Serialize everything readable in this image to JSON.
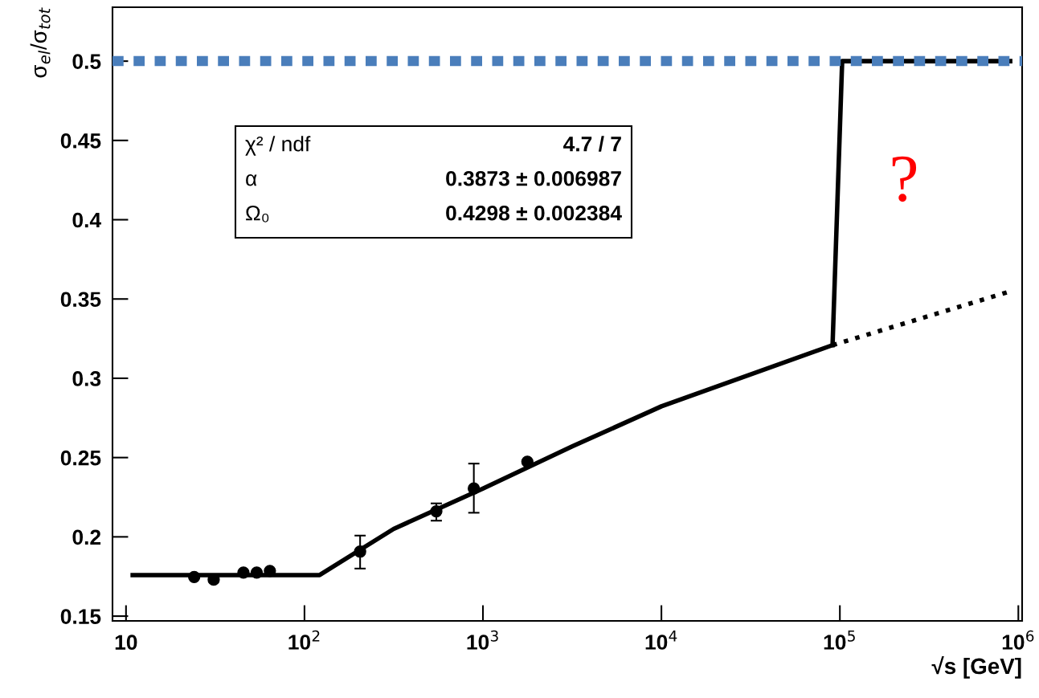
{
  "chart_data": {
    "type": "scatter",
    "xlabel": "√s [GeV]",
    "ylabel": "σ$_{el}$/σ$_{tot}$",
    "log": "x",
    "grid": false,
    "legend": false,
    "xlim": [
      8.4,
      1050000
    ],
    "ylim": [
      0.147,
      0.534
    ],
    "xticks": [
      10,
      {
        "value": 100,
        "label": "10$^{2}$"
      },
      {
        "value": 1000,
        "label": "10$^{3}$"
      },
      {
        "value": 10000,
        "label": "10$^{4}$"
      },
      {
        "value": 100000,
        "label": "10$^{5}$"
      },
      {
        "value": 1000000,
        "label": "10$^{6}$"
      }
    ],
    "yticks": [
      0.15,
      0.2,
      0.25,
      0.3,
      0.35,
      0.4,
      0.45,
      0.5
    ],
    "series": [
      {
        "color": "#000000",
        "marker": "circle",
        "x": [
          24.1,
          31,
          45.5,
          54,
          64,
          205,
          548,
          889,
          1774
        ],
        "values": [
          0.1747,
          0.173,
          0.1775,
          0.1775,
          0.1785,
          0.1907,
          0.2161,
          0.2305,
          0.2474
        ],
        "errors": [
          null,
          null,
          null,
          null,
          null,
          [
            0.18,
            0.2008
          ],
          [
            0.2102,
            0.2211
          ],
          [
            0.2152,
            0.2462
          ],
          null
        ]
      },
      {
        "type": "line",
        "color": "#000000",
        "line_style": "solid",
        "x": [
          10.9,
          121.6,
          316,
          1000,
          3162,
          10000,
          91000
        ],
        "values": [
          0.1759,
          0.1759,
          0.205,
          0.2305,
          0.257,
          0.2823,
          0.3209
        ]
      },
      {
        "type": "line",
        "color": "#000000",
        "line_style": "dotted",
        "x": [
          91000,
          900000
        ],
        "values": [
          0.3209,
          0.3548
        ]
      },
      {
        "type": "line",
        "color": "#000000",
        "line_style": "solid",
        "x": [
          91000,
          103000,
          900000
        ],
        "values": [
          0.3209,
          0.5,
          0.5
        ]
      }
    ],
    "ref_lines": [
      {
        "axis": "y",
        "value": 0.5,
        "color": "#4a7ebb",
        "line_style": "dotted"
      }
    ],
    "annotations": [
      "χ² / ndf",
      "4.7 / 7",
      "α",
      "0.3873 ± 0.006987",
      "Ω₀",
      "0.4298 ± 0.002384",
      "?"
    ]
  }
}
